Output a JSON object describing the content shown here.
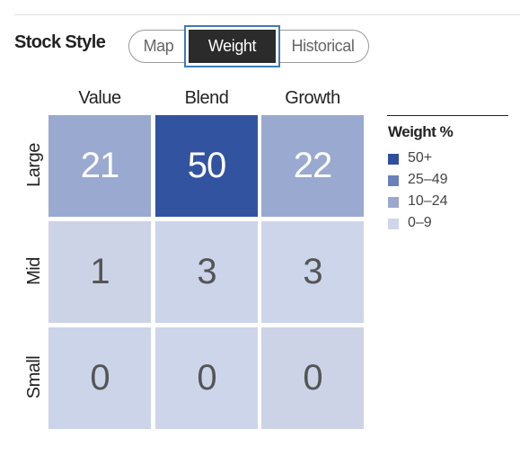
{
  "header": {
    "title": "Stock Style",
    "tabs": [
      {
        "label": "Map"
      },
      {
        "label": "Weight",
        "selected": true
      },
      {
        "label": "Historical"
      }
    ]
  },
  "grid": {
    "columns": [
      "Value",
      "Blend",
      "Growth"
    ],
    "rows": [
      {
        "label": "Large",
        "cells": [
          {
            "value": 21,
            "color": "#9aa9d0",
            "text_color": "#ffffff"
          },
          {
            "value": 50,
            "color": "#3153a0",
            "text_color": "#ffffff"
          },
          {
            "value": 22,
            "color": "#9aa9d0",
            "text_color": "#ffffff"
          }
        ]
      },
      {
        "label": "Mid",
        "cells": [
          {
            "value": 1,
            "color": "#cdd3e6",
            "text_color": "#555555"
          },
          {
            "value": 3,
            "color": "#ccd4ea",
            "text_color": "#555555"
          },
          {
            "value": 3,
            "color": "#cdd5ea",
            "text_color": "#555555"
          }
        ]
      },
      {
        "label": "Small",
        "cells": [
          {
            "value": 0,
            "color": "#ccd4ea",
            "text_color": "#555555"
          },
          {
            "value": 0,
            "color": "#cdd5ea",
            "text_color": "#555555"
          },
          {
            "value": 0,
            "color": "#ccd3e7",
            "text_color": "#555555"
          }
        ]
      }
    ]
  },
  "legend": {
    "title": "Weight %",
    "items": [
      {
        "label": "50+",
        "color": "#2e4f9e"
      },
      {
        "label": "25–49",
        "color": "#6a80bb"
      },
      {
        "label": "10–24",
        "color": "#9aa8d0"
      },
      {
        "label": "0–9",
        "color": "#cfd6ea"
      }
    ]
  }
}
